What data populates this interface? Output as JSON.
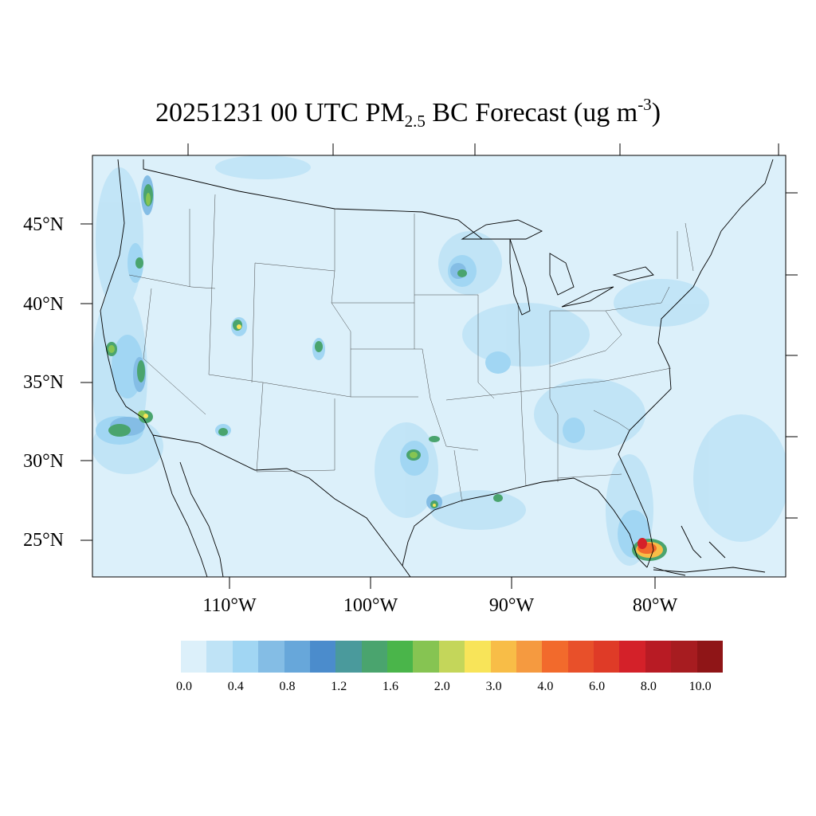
{
  "title": {
    "prefix": "20251231 00 UTC PM",
    "subscript": "2.5",
    "middle": " BC Forecast (ug m",
    "superscript": "-3",
    "suffix": ")"
  },
  "map": {
    "background_color": "#dcf0fa",
    "latitude_labels": [
      "45°N",
      "40°N",
      "35°N",
      "30°N",
      "25°N"
    ],
    "longitude_labels": [
      "110°W",
      "100°W",
      "90°W",
      "80°W"
    ]
  },
  "colorbar": {
    "colors": [
      "#dcf0fa",
      "#bfe3f6",
      "#a1d6f3",
      "#84bde5",
      "#67a7da",
      "#4b8ccc",
      "#4a9a9c",
      "#4aa46e",
      "#4ab54a",
      "#86c452",
      "#c4d65a",
      "#f8e459",
      "#f8bd47",
      "#f59a40",
      "#f26a2c",
      "#e8502a",
      "#df3b27",
      "#d42129",
      "#b81b24",
      "#a71c20",
      "#8f1517"
    ],
    "tick_labels": [
      "0.0",
      "0.4",
      "0.8",
      "1.2",
      "1.6",
      "2.0",
      "3.0",
      "4.0",
      "6.0",
      "8.0",
      "10.0"
    ]
  }
}
